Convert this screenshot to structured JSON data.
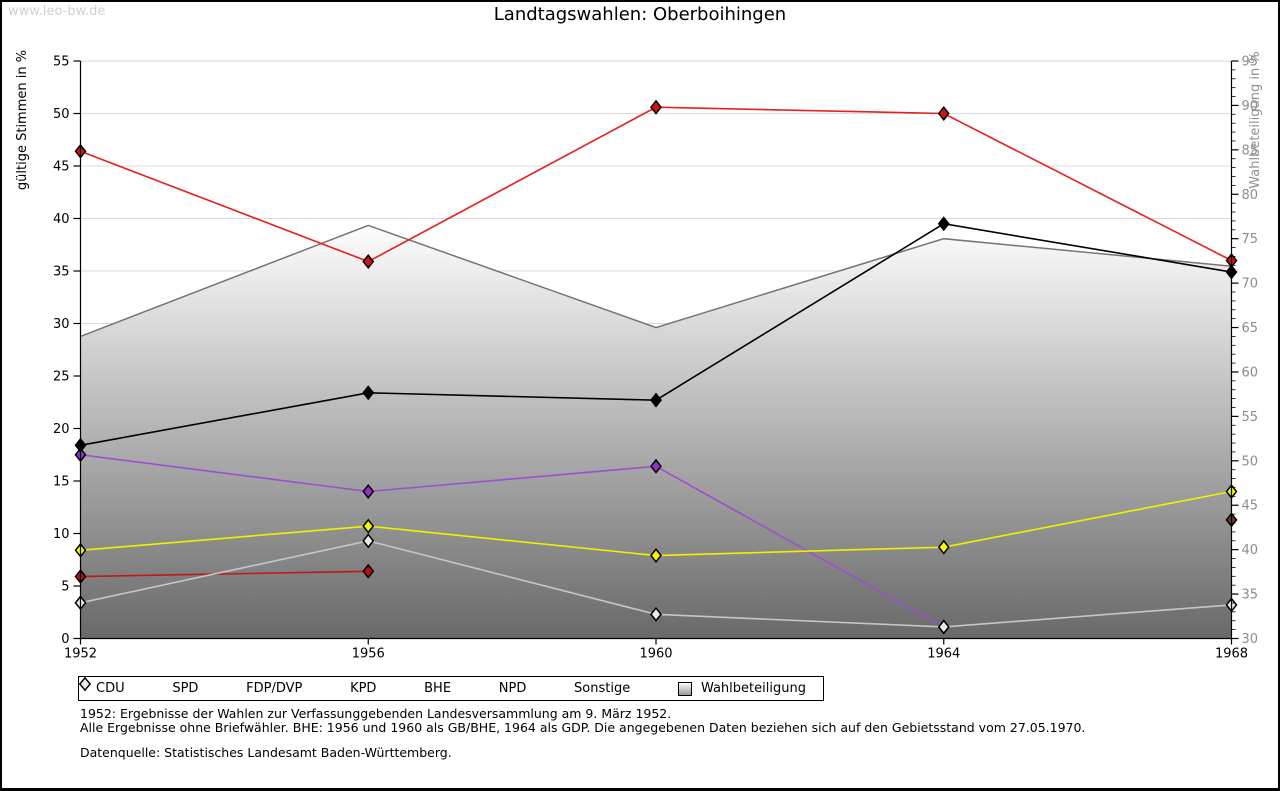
{
  "page": {
    "watermark": "www.leo-bw.de",
    "title": "Landtagswahlen: Oberboihingen"
  },
  "chart_data": {
    "type": "line",
    "title": "Landtagswahlen: Oberboihingen",
    "x": [
      1952,
      1956,
      1960,
      1964,
      1968
    ],
    "left_axis": {
      "label": "gültige Stimmen in %",
      "min": 0,
      "max": 55,
      "step": 5
    },
    "right_axis": {
      "label": "Wahlbeteiligung in %",
      "min": 30,
      "max": 95,
      "step": 5
    },
    "grid": true,
    "legend_position": "bottom",
    "series": [
      {
        "name": "BHE",
        "axis": "left",
        "color": "#9b4fd0",
        "marker": "#9230c8",
        "values": [
          17.5,
          14.0,
          16.4,
          1.1,
          null
        ]
      },
      {
        "name": "NPD",
        "axis": "left",
        "color": "#6e3a28",
        "marker": "#6e3a28",
        "values": [
          null,
          null,
          null,
          null,
          11.3
        ]
      },
      {
        "name": "KPD",
        "axis": "left",
        "color": "#c01818",
        "marker": "#b01212",
        "values": [
          5.9,
          6.4,
          null,
          null,
          null
        ]
      },
      {
        "name": "Sonstige",
        "axis": "left",
        "color": "#c6c6c6",
        "marker": "#e8e8e8",
        "values": [
          3.4,
          9.3,
          2.3,
          1.1,
          3.2
        ]
      },
      {
        "name": "FDP/DVP",
        "axis": "left",
        "color": "#f0f000",
        "marker": "#f5f500",
        "values": [
          8.4,
          10.7,
          7.9,
          8.7,
          14.0
        ]
      },
      {
        "name": "SPD",
        "axis": "left",
        "color": "#e62020",
        "marker": "#cc1414",
        "values": [
          46.4,
          35.9,
          50.6,
          50.0,
          36.0
        ]
      },
      {
        "name": "CDU",
        "axis": "left",
        "color": "#000000",
        "marker": "#000000",
        "values": [
          18.4,
          23.4,
          22.7,
          39.5,
          34.9
        ]
      }
    ],
    "participation": {
      "name": "Wahlbeteiligung",
      "axis": "right",
      "values": [
        64.0,
        76.5,
        65.0,
        75.0,
        71.9
      ],
      "edge_color": "#757575",
      "fill_top": "#fdfdfd",
      "fill_bottom": "#696969"
    }
  },
  "legend": {
    "items": [
      {
        "label": "CDU",
        "icon": "diamond",
        "color": "#000000"
      },
      {
        "label": "SPD",
        "icon": "diamond",
        "color": "#cc1414"
      },
      {
        "label": "FDP/DVP",
        "icon": "diamond",
        "color": "#f5f500"
      },
      {
        "label": "KPD",
        "icon": "diamond",
        "color": "#b01212"
      },
      {
        "label": "BHE",
        "icon": "diamond",
        "color": "#9230c8"
      },
      {
        "label": "NPD",
        "icon": "diamond",
        "color": "#6e3a28"
      },
      {
        "label": "Sonstige",
        "icon": "diamond",
        "color": "#e8e8e8"
      },
      {
        "label": "Wahlbeteiligung",
        "icon": "square",
        "color": "#bfbfbf"
      }
    ]
  },
  "footnotes": {
    "line1": "1952: Ergebnisse der Wahlen zur Verfassunggebenden Landesversammlung am 9. März 1952.",
    "line2": "Alle Ergebnisse ohne Briefwähler. BHE: 1956 und 1960 als GB/BHE, 1964 als GDP. Die angegebenen Daten beziehen sich auf den Gebietsstand vom 27.05.1970.",
    "source": "Datenquelle: Statistisches Landesamt Baden-Württemberg."
  }
}
